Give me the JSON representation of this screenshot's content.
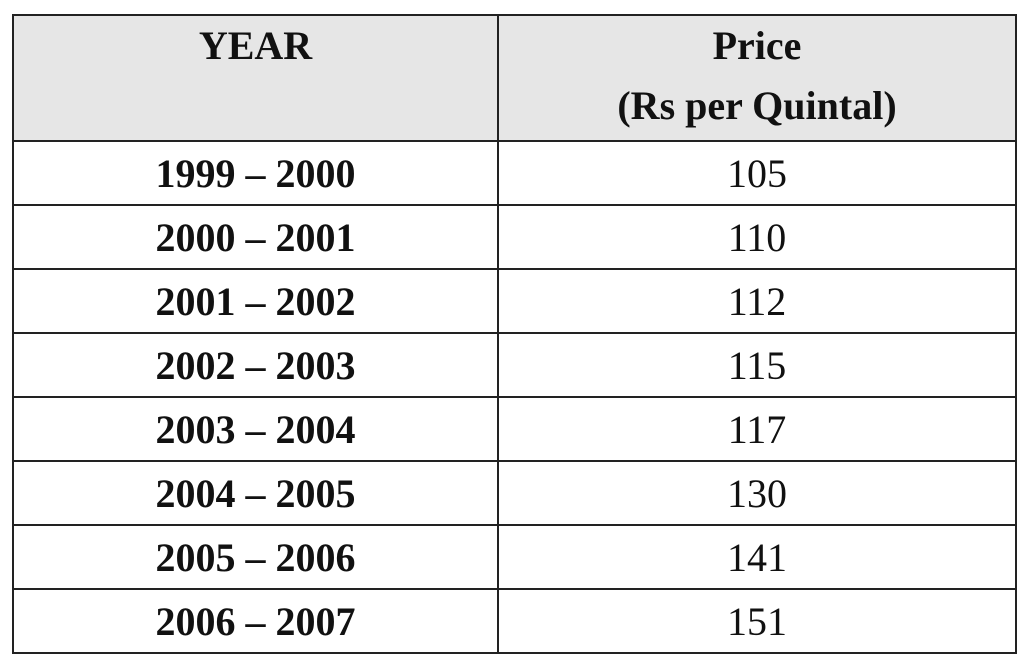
{
  "table": {
    "header": {
      "year": "YEAR",
      "price": [
        "Price",
        "(Rs per Quintal)"
      ]
    },
    "rows": [
      [
        "1999 – 2000",
        105
      ],
      [
        "2000 – 2001",
        110
      ],
      [
        "2001 – 2002",
        112
      ],
      [
        "2002 – 2003",
        115
      ],
      [
        "2003 – 2004",
        117
      ],
      [
        "2004 – 2005",
        130
      ],
      [
        "2005 – 2006",
        141
      ],
      [
        "2006 – 2007",
        151
      ]
    ]
  }
}
